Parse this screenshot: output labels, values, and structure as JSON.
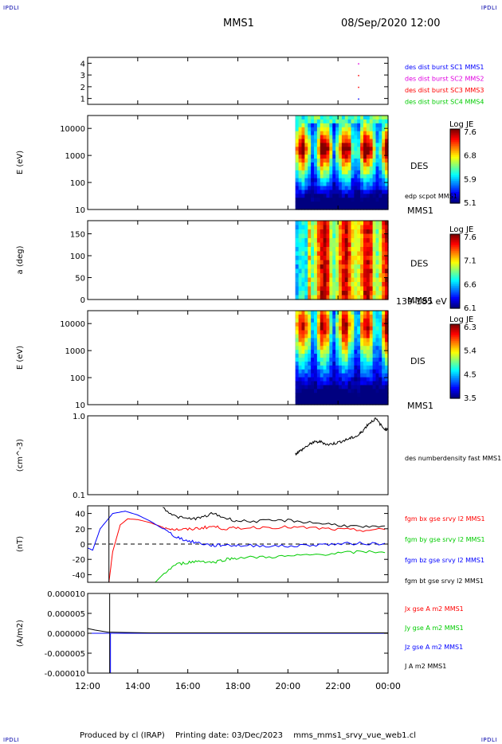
{
  "header": {
    "corner_tl": "IPDLI",
    "corner_tr": "IPDLI",
    "corner_bl": "IPDLI",
    "corner_br": "IPDLI",
    "spacecraft": "MMS1",
    "datetime": "08/Sep/2020 12:00"
  },
  "footer": {
    "produced_by": "Produced by cl (IRAP)",
    "printing_date": "Printing date: 03/Dec/2023",
    "filename": "mms_mms1_srvy_vue_web1.cl"
  },
  "x_axis": {
    "tick_labels": [
      "12:00",
      "14:00",
      "16:00",
      "18:00",
      "20:00",
      "22:00",
      "00:00"
    ],
    "range_hours": [
      12,
      24
    ]
  },
  "colors": {
    "blue": "#0000ff",
    "magenta": "#e000e0",
    "red": "#ff0000",
    "green": "#00cc00",
    "black": "#000000"
  },
  "chart_data": [
    {
      "type": "scatter",
      "panel": "burst",
      "ylim": [
        0.5,
        4.5
      ],
      "ytick_labels": [
        "1",
        "2",
        "3",
        "4"
      ],
      "legend": [
        {
          "text": "des dist burst SC1 MMS1",
          "color": "#0000ff"
        },
        {
          "text": "des dist burst SC2 MMS2",
          "color": "#e000e0"
        },
        {
          "text": "des dist burst SC3 MMS3",
          "color": "#ff0000"
        },
        {
          "text": "des dist burst SC4 MMS4",
          "color": "#00cc00"
        }
      ],
      "points": [
        {
          "x": 22.8,
          "y": 1,
          "color": "#0000ff"
        },
        {
          "x": 22.8,
          "y": 2,
          "color": "#ff0000"
        },
        {
          "x": 22.8,
          "y": 3,
          "color": "#ff0000"
        },
        {
          "x": 22.8,
          "y": 4,
          "color": "#e000e0"
        }
      ]
    },
    {
      "type": "heatmap",
      "panel": "des_energy",
      "ylabel": "E (eV)",
      "yscale": "log",
      "ylim": [
        10,
        30000
      ],
      "ytick_labels": [
        "10",
        "100",
        "1000",
        "10000"
      ],
      "data_start_hour": 20.3,
      "label": "DES",
      "sublabel": "MMS1",
      "overlay_label": "edp scpot MMS1",
      "colorbar": {
        "title": "Log JE",
        "ticks": [
          "7.6",
          "6.8",
          "5.9",
          "5.1"
        ],
        "range": [
          5.1,
          7.6
        ]
      }
    },
    {
      "type": "heatmap",
      "panel": "des_pitch",
      "ylabel": "a (deg)",
      "ylim": [
        0,
        180
      ],
      "ytick_labels": [
        "0",
        "50",
        "100",
        "150"
      ],
      "data_start_hour": 20.3,
      "label": "DES",
      "sublabel": "MMS1",
      "energy_range": "139-185 eV",
      "colorbar": {
        "title": "Log JE",
        "ticks": [
          "7.6",
          "7.1",
          "6.6",
          "6.1"
        ],
        "range": [
          6.1,
          7.6
        ]
      }
    },
    {
      "type": "heatmap",
      "panel": "dis_energy",
      "ylabel": "E (eV)",
      "yscale": "log",
      "ylim": [
        10,
        30000
      ],
      "ytick_labels": [
        "10",
        "100",
        "1000",
        "10000"
      ],
      "data_start_hour": 20.3,
      "label": "DIS",
      "sublabel": "MMS1",
      "colorbar": {
        "title": "Log JE",
        "ticks": [
          "6.3",
          "5.4",
          "4.5",
          "3.5"
        ],
        "range": [
          3.5,
          6.3
        ]
      }
    },
    {
      "type": "line",
      "panel": "density",
      "ylabel": "(cm^-3)",
      "yscale": "log",
      "ylim": [
        0.1,
        1.0
      ],
      "ytick_labels": [
        "0.1",
        "1.0"
      ],
      "series": [
        {
          "name": "des numberdensity fast MMS1",
          "color": "#000000",
          "x": [
            20.3,
            20.5,
            20.8,
            21.0,
            21.3,
            21.6,
            21.9,
            22.2,
            22.5,
            22.8,
            23.0,
            23.2,
            23.5,
            23.8,
            24.0
          ],
          "y": [
            0.33,
            0.36,
            0.42,
            0.46,
            0.47,
            0.43,
            0.45,
            0.48,
            0.52,
            0.56,
            0.65,
            0.78,
            0.92,
            0.7,
            0.66
          ]
        }
      ]
    },
    {
      "type": "line",
      "panel": "fgm",
      "ylabel": "(nT)",
      "ylim": [
        -50,
        50
      ],
      "ytick_labels": [
        "-40",
        "-20",
        "0",
        "20",
        "40"
      ],
      "series": [
        {
          "name": "fgm bx gse srvy l2 MMS1",
          "color": "#ff0000",
          "x": [
            12.85,
            13.0,
            13.3,
            13.6,
            14.0,
            14.5,
            15.0,
            15.5,
            16.0,
            16.5,
            17.0,
            17.5,
            18.0,
            19.0,
            20.0,
            21.0,
            22.0,
            23.0,
            24.0
          ],
          "y": [
            -50,
            -10,
            25,
            33,
            32,
            28,
            22,
            19,
            19,
            21,
            23,
            20,
            21,
            22,
            22,
            21,
            19,
            18,
            19
          ]
        },
        {
          "name": "fgm by gse srvy l2 MMS1",
          "color": "#00cc00",
          "x": [
            14.7,
            15.0,
            15.5,
            16.0,
            16.5,
            17.0,
            17.5,
            18.0,
            19.0,
            20.0,
            21.0,
            22.0,
            23.0,
            24.0
          ],
          "y": [
            -50,
            -40,
            -27,
            -24,
            -22,
            -24,
            -20,
            -18,
            -17,
            -16,
            -14,
            -12,
            -10,
            -10
          ]
        },
        {
          "name": "fgm bz gse srvy l2 MMS1",
          "color": "#0000ff",
          "x": [
            12.0,
            12.2,
            12.5,
            13.0,
            13.5,
            14.0,
            14.5,
            15.0,
            15.5,
            16.0,
            16.5,
            17.0,
            17.5,
            18.0,
            19.0,
            20.0,
            21.0,
            22.0,
            23.0,
            24.0
          ],
          "y": [
            -5,
            -8,
            20,
            40,
            43,
            38,
            30,
            20,
            10,
            4,
            1,
            -2,
            -1,
            -2,
            -2,
            -3,
            -1,
            0,
            1,
            0
          ]
        },
        {
          "name": "fgm bt gse srvy l2 MMS1",
          "color": "#000000",
          "x": [
            15.0,
            15.5,
            16.0,
            16.5,
            17.0,
            17.5,
            18.0,
            19.0,
            20.0,
            21.0,
            22.0,
            23.0,
            24.0
          ],
          "y": [
            48,
            36,
            33,
            34,
            40,
            34,
            30,
            30,
            31,
            28,
            25,
            22,
            22
          ]
        }
      ],
      "dashed_zero": true
    },
    {
      "type": "line",
      "panel": "current",
      "ylabel": "(A/m2)",
      "ylim": [
        -1e-05,
        1e-05
      ],
      "ytick_labels": [
        "-0.000010",
        "-0.000005",
        "0.000000",
        "0.000005",
        "0.000010"
      ],
      "series": [
        {
          "name": "Jx gse A m2 MMS1",
          "color": "#ff0000",
          "x": [
            12.0,
            24.0
          ],
          "y": [
            0,
            0
          ]
        },
        {
          "name": "Jy gse A m2 MMS1",
          "color": "#00cc00",
          "x": [
            12.0,
            24.0
          ],
          "y": [
            0,
            0
          ]
        },
        {
          "name": "Jz gse A m2 MMS1",
          "color": "#0000ff",
          "x": [
            12.0,
            24.0
          ],
          "y": [
            0,
            0
          ]
        },
        {
          "name": "J A m2 MMS1",
          "color": "#000000",
          "x": [
            12.0,
            12.3,
            12.8,
            13.5,
            14.5,
            16.0,
            18.0,
            20.0,
            22.0,
            24.0
          ],
          "y": [
            1.2e-06,
            8e-07,
            3e-07,
            2e-07,
            1e-07,
            1e-07,
            1e-07,
            1e-07,
            1e-07,
            1e-07
          ]
        }
      ],
      "spike_hour": 12.88
    }
  ]
}
